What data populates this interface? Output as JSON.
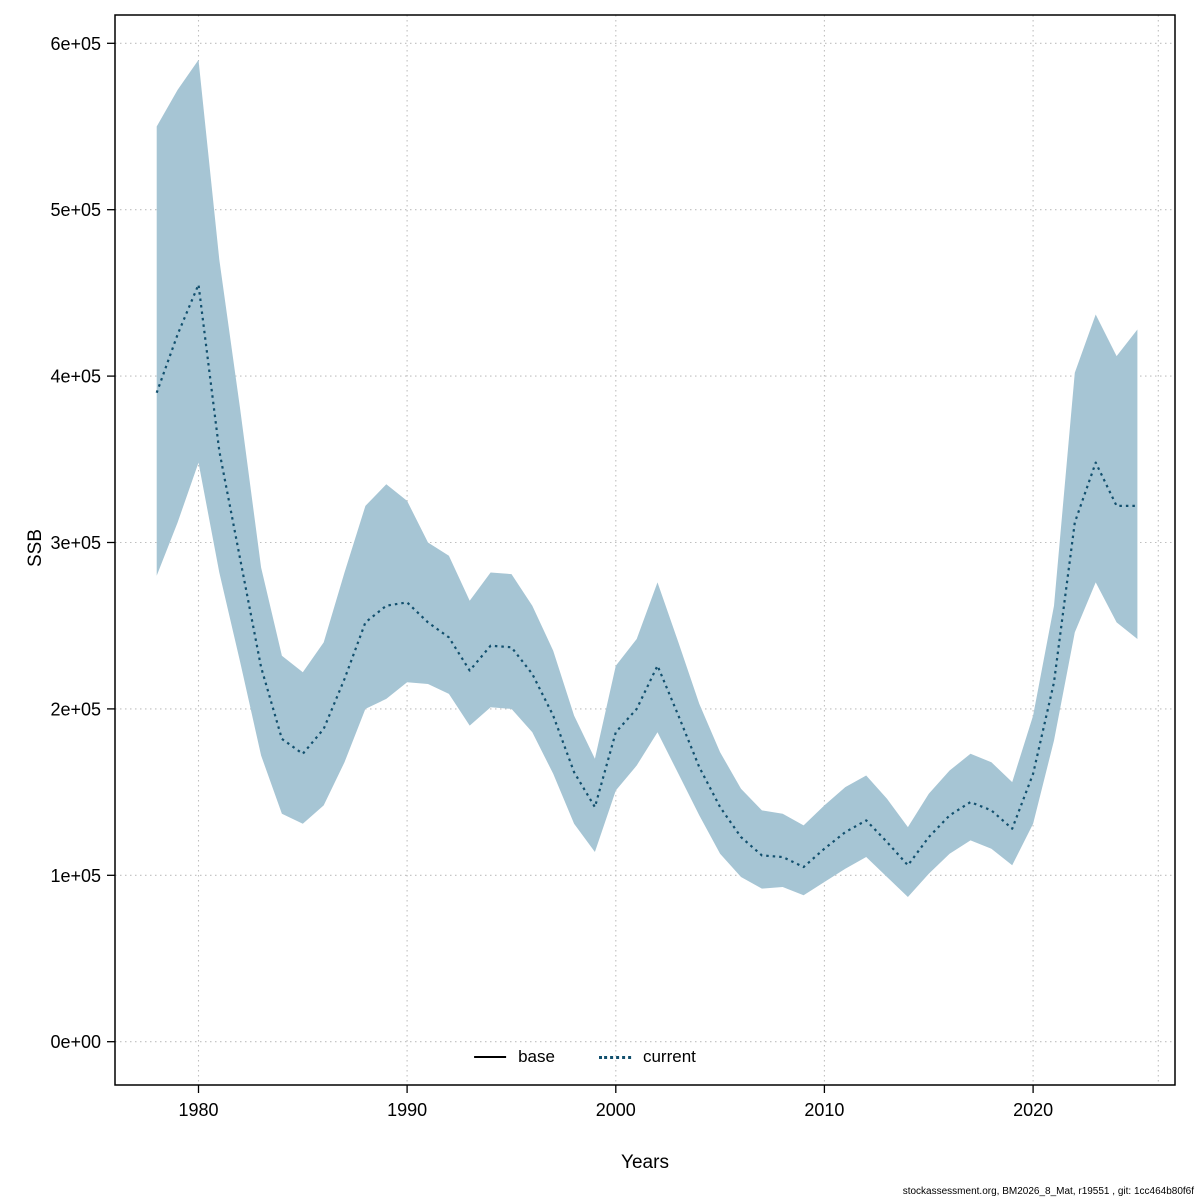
{
  "figure": {
    "footer": "stockassessment.org, BM2026_8_Mat, r19551 , git: 1cc464b80f6f",
    "legend": [
      {
        "label": "base",
        "line_style": "solid",
        "color": "#000000"
      },
      {
        "label": "current",
        "line_style": "dotted",
        "color": "#12506e"
      }
    ]
  },
  "chart_data": {
    "type": "line",
    "title": "",
    "xlabel": "Years",
    "ylabel": "SSB",
    "grid": true,
    "grid_color": "#bfbfbf",
    "band_color": "#a6c5d4",
    "legend_position": "bottom-center",
    "xlim": [
      1976,
      2026.8
    ],
    "ylim": [
      -26000,
      617000
    ],
    "xticks": [
      {
        "value": 1980,
        "label": "1980"
      },
      {
        "value": 1990,
        "label": "1990"
      },
      {
        "value": 2000,
        "label": "2000"
      },
      {
        "value": 2010,
        "label": "2010"
      },
      {
        "value": 2020,
        "label": "2020"
      }
    ],
    "xgrid_extra": [
      2026
    ],
    "yticks": [
      {
        "value": 0,
        "label": "0e+00"
      },
      {
        "value": 100000,
        "label": "1e+05"
      },
      {
        "value": 200000,
        "label": "2e+05"
      },
      {
        "value": 300000,
        "label": "3e+05"
      },
      {
        "value": 400000,
        "label": "4e+05"
      },
      {
        "value": 500000,
        "label": "5e+05"
      },
      {
        "value": 600000,
        "label": "6e+05"
      }
    ],
    "x": [
      1978,
      1979,
      1980,
      1981,
      1982,
      1983,
      1984,
      1985,
      1986,
      1987,
      1988,
      1989,
      1990,
      1991,
      1992,
      1993,
      1994,
      1995,
      1996,
      1997,
      1998,
      1999,
      2000,
      2001,
      2002,
      2003,
      2004,
      2005,
      2006,
      2007,
      2008,
      2009,
      2010,
      2011,
      2012,
      2013,
      2014,
      2015,
      2016,
      2017,
      2018,
      2019,
      2020,
      2021,
      2022,
      2023,
      2024,
      2025
    ],
    "series": [
      {
        "name": "current",
        "style": "dotted",
        "color": "#12506e",
        "values": [
          390000,
          425000,
          455000,
          355000,
          290000,
          225000,
          182000,
          173000,
          188000,
          218000,
          252000,
          262000,
          264000,
          252000,
          243000,
          223000,
          238000,
          237000,
          221000,
          196000,
          162000,
          141000,
          186000,
          200000,
          226000,
          196000,
          165000,
          141000,
          123000,
          112000,
          111000,
          105000,
          116000,
          126000,
          133000,
          120000,
          106000,
          123000,
          136000,
          144000,
          139000,
          128000,
          161000,
          216000,
          312000,
          348000,
          322000,
          322000
        ]
      },
      {
        "name": "current_upper_95CI",
        "style": "band-edge",
        "values": [
          550000,
          572000,
          590000,
          470000,
          380000,
          285000,
          232000,
          222000,
          240000,
          282000,
          322000,
          335000,
          325000,
          300000,
          292000,
          265000,
          282000,
          281000,
          262000,
          235000,
          196000,
          170000,
          226000,
          242000,
          276000,
          240000,
          203000,
          174000,
          152000,
          139000,
          137000,
          130000,
          142000,
          153000,
          160000,
          146000,
          129000,
          149000,
          163000,
          173000,
          168000,
          156000,
          196000,
          262000,
          402000,
          437000,
          412000,
          428000
        ]
      },
      {
        "name": "current_lower_95CI",
        "style": "band-edge",
        "values": [
          280000,
          312000,
          348000,
          282000,
          228000,
          172000,
          137000,
          131000,
          142000,
          168000,
          200000,
          206000,
          216000,
          215000,
          209000,
          190000,
          201000,
          200000,
          186000,
          161000,
          131000,
          114000,
          151000,
          166000,
          186000,
          161000,
          136000,
          113000,
          99000,
          92000,
          93000,
          88000,
          96000,
          104000,
          111000,
          99000,
          87000,
          101000,
          113000,
          121000,
          116000,
          106000,
          131000,
          181000,
          246000,
          276000,
          252000,
          242000
        ]
      }
    ]
  }
}
